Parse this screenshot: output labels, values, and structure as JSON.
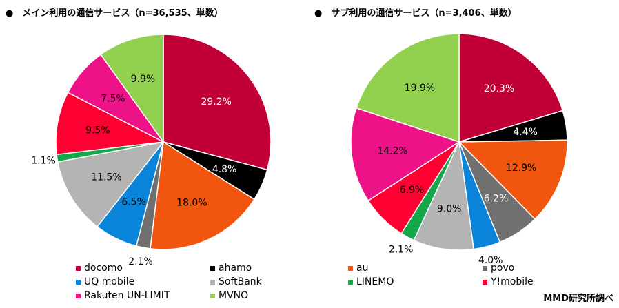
{
  "chart_data": [
    {
      "type": "pie",
      "title": "●　メイン利用の通信サービス（n=36,535、単数）",
      "labels": [
        "docomo",
        "ahamo",
        "au",
        "povo",
        "UQ mobile",
        "SoftBank",
        "LINEMO",
        "Y!mobile",
        "Rakuten UN-LIMIT",
        "MVNO"
      ],
      "values": [
        29.2,
        4.8,
        18.0,
        2.1,
        6.5,
        11.5,
        1.1,
        9.5,
        7.5,
        9.9
      ],
      "data_labels": [
        "29.2%",
        "4.8%",
        "18.0%",
        "2.1%",
        "6.5%",
        "11.5%",
        "1.1%",
        "9.5%",
        "7.5%",
        "9.9%"
      ]
    },
    {
      "type": "pie",
      "title": "●　サブ利用の通信サービス（n=3,406、単数）",
      "labels": [
        "docomo",
        "ahamo",
        "au",
        "povo",
        "UQ mobile",
        "SoftBank",
        "LINEMO",
        "Y!mobile",
        "Rakuten UN-LIMIT",
        "MVNO"
      ],
      "values": [
        20.3,
        4.4,
        12.9,
        6.2,
        4.0,
        9.0,
        2.1,
        6.9,
        14.2,
        19.9
      ],
      "data_labels": [
        "20.3%",
        "4.4%",
        "12.9%",
        "6.2%",
        "4.0%",
        "9.0%",
        "2.1%",
        "6.9%",
        "14.2%",
        "19.9%"
      ]
    }
  ],
  "colors": [
    "#C00037",
    "#000000",
    "#F0560F",
    "#707070",
    "#0A84D8",
    "#B4B4B4",
    "#14A84A",
    "#FF0033",
    "#EE1289",
    "#92D050"
  ],
  "legend": [
    "docomo",
    "ahamo",
    "au",
    "povo",
    "UQ mobile",
    "SoftBank",
    "LINEMO",
    "Y!mobile",
    "Rakuten UN-LIMIT",
    "MVNO"
  ],
  "source": "MMD研究所調べ"
}
